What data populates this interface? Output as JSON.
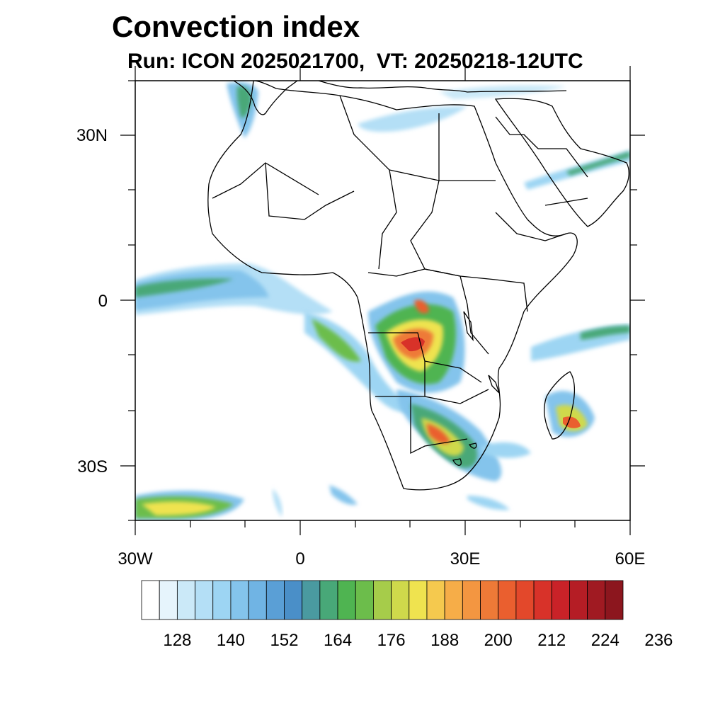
{
  "title": "Convection index",
  "subtitle": "Run: ICON 2025021700,  VT: 20250218-12UTC",
  "axes": {
    "lon_labels": [
      "30W",
      "0",
      "30E",
      "60E"
    ],
    "lat_labels": [
      "30N",
      "0",
      "30S"
    ]
  },
  "colorbar": {
    "labels": [
      "128",
      "140",
      "152",
      "164",
      "176",
      "188",
      "200",
      "212",
      "224",
      "236"
    ],
    "colors": [
      "#ffffff",
      "#e6f4fc",
      "#cbe9f8",
      "#b4dff6",
      "#9dd5f3",
      "#84c4ec",
      "#70b4e4",
      "#5a9fd6",
      "#4a8fc8",
      "#4a9aa0",
      "#48a878",
      "#4fb451",
      "#6cbd4b",
      "#a6cc4a",
      "#cfd94b",
      "#efe34f",
      "#f5c94e",
      "#f6ad48",
      "#f39641",
      "#ee7a37",
      "#ea5f2f",
      "#e3482b",
      "#d83229",
      "#c92228",
      "#b51d25",
      "#a01a22",
      "#8c161e"
    ]
  }
}
